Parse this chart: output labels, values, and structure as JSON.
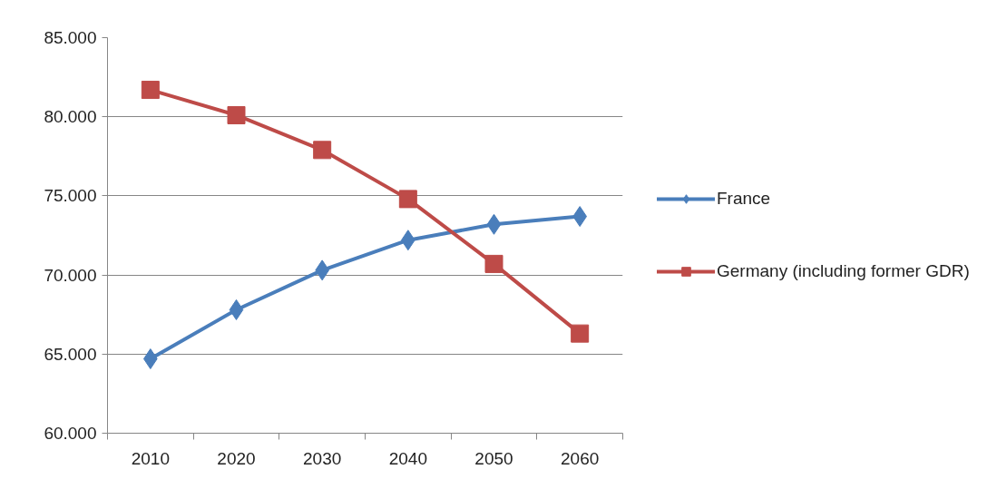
{
  "chart_data": {
    "type": "line",
    "categories": [
      "2010",
      "2020",
      "2030",
      "2040",
      "2050",
      "2060"
    ],
    "series": [
      {
        "name": "France",
        "color": "#4a7ebb",
        "marker": "diamond",
        "values": [
          64.7,
          67.8,
          70.3,
          72.2,
          73.2,
          73.7
        ]
      },
      {
        "name": "Germany (including former GDR)",
        "color": "#be4b48",
        "marker": "square",
        "values": [
          81.7,
          80.1,
          77.9,
          74.8,
          70.7,
          66.3
        ]
      }
    ],
    "ylim": [
      60,
      85
    ],
    "yticks": [
      {
        "value": 60,
        "label": "60.000"
      },
      {
        "value": 65,
        "label": "65.000"
      },
      {
        "value": 70,
        "label": "70.000"
      },
      {
        "value": 75,
        "label": "75.000"
      },
      {
        "value": 80,
        "label": "80.000"
      },
      {
        "value": 85,
        "label": "85.000"
      }
    ],
    "grid": "y",
    "legend": "right",
    "line_style": "solid"
  }
}
